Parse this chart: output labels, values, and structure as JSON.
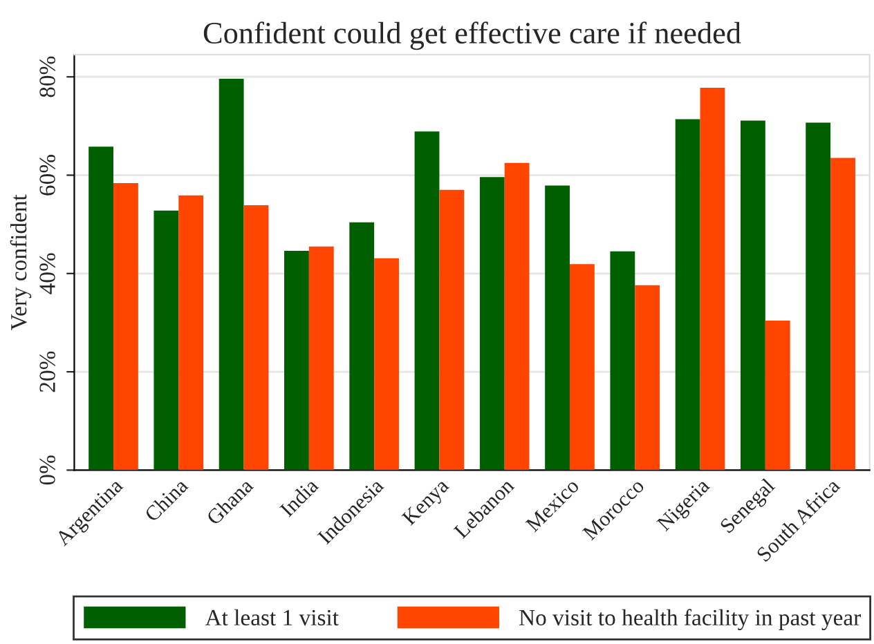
{
  "chart_data": {
    "type": "bar",
    "title": "Confident could get effective care if needed",
    "ylabel": "Very confident",
    "categories": [
      "Argentina",
      "China",
      "Ghana",
      "India",
      "Indonesia",
      "Kenya",
      "Lebanon",
      "Mexico",
      "Morocco",
      "Nigeria",
      "Senegal",
      "South Africa"
    ],
    "series": [
      {
        "name": "At least 1 visit",
        "color": "#005f00",
        "values": [
          65.8,
          52.8,
          79.6,
          44.6,
          50.4,
          68.9,
          59.6,
          57.9,
          44.5,
          71.4,
          71.1,
          70.7
        ]
      },
      {
        "name": "No visit to health facility in past year",
        "color": "#ff4500",
        "values": [
          58.4,
          55.9,
          53.9,
          45.5,
          43.1,
          57.0,
          62.5,
          41.9,
          37.6,
          77.8,
          30.4,
          63.5
        ]
      }
    ],
    "ylim": [
      0,
      84.5
    ],
    "yticks": [
      {
        "value": 0,
        "label": "0%"
      },
      {
        "value": 20,
        "label": "20%"
      },
      {
        "value": 40,
        "label": "40%"
      },
      {
        "value": 60,
        "label": "60%"
      },
      {
        "value": 80,
        "label": "80%"
      }
    ],
    "grid": "y",
    "legend": "bottom"
  }
}
